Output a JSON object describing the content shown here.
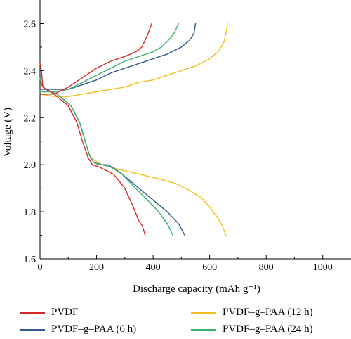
{
  "chart_data": {
    "type": "line",
    "xlabel": "Discharge capacity (mAh g⁻¹)",
    "ylabel": "Voltage (V)",
    "xlim": [
      0,
      1100
    ],
    "ylim": [
      1.6,
      2.7
    ],
    "xticks": [
      0,
      200,
      400,
      600,
      800,
      1000
    ],
    "yticks": [
      1.6,
      1.8,
      2.0,
      2.2,
      2.4,
      2.6
    ],
    "xtick_labels": [
      "0",
      "200",
      "400",
      "600",
      "800",
      "1000"
    ],
    "ytick_labels": [
      "1.6",
      "1.8",
      "2.0",
      "2.2",
      "2.4",
      "2.6"
    ],
    "legend_position": "below",
    "series": [
      {
        "name": "PVDF",
        "color": "#d62728",
        "discharge": [
          [
            0,
            2.43
          ],
          [
            5,
            2.4
          ],
          [
            10,
            2.33
          ],
          [
            50,
            2.3
          ],
          [
            100,
            2.25
          ],
          [
            130,
            2.18
          ],
          [
            150,
            2.1
          ],
          [
            170,
            2.03
          ],
          [
            185,
            2.0
          ],
          [
            210,
            1.99
          ],
          [
            260,
            1.96
          ],
          [
            300,
            1.9
          ],
          [
            330,
            1.82
          ],
          [
            350,
            1.76
          ],
          [
            362,
            1.74
          ],
          [
            372,
            1.7
          ]
        ],
        "charge": [
          [
            0,
            2.3
          ],
          [
            50,
            2.3
          ],
          [
            100,
            2.33
          ],
          [
            150,
            2.37
          ],
          [
            200,
            2.41
          ],
          [
            250,
            2.44
          ],
          [
            300,
            2.46
          ],
          [
            340,
            2.48
          ],
          [
            360,
            2.5
          ],
          [
            380,
            2.55
          ],
          [
            395,
            2.6
          ]
        ]
      },
      {
        "name": "PVDF–g–PAA (6 h)",
        "color": "#2f5c8f",
        "discharge": [
          [
            0,
            2.37
          ],
          [
            5,
            2.34
          ],
          [
            20,
            2.32
          ],
          [
            60,
            2.3
          ],
          [
            110,
            2.25
          ],
          [
            140,
            2.18
          ],
          [
            160,
            2.1
          ],
          [
            175,
            2.04
          ],
          [
            190,
            2.01
          ],
          [
            210,
            2.0
          ],
          [
            240,
            2.0
          ],
          [
            280,
            1.97
          ],
          [
            330,
            1.92
          ],
          [
            400,
            1.85
          ],
          [
            450,
            1.8
          ],
          [
            490,
            1.75
          ],
          [
            512,
            1.7
          ]
        ],
        "charge": [
          [
            0,
            2.32
          ],
          [
            50,
            2.32
          ],
          [
            100,
            2.32
          ],
          [
            150,
            2.34
          ],
          [
            200,
            2.36
          ],
          [
            250,
            2.39
          ],
          [
            300,
            2.41
          ],
          [
            350,
            2.43
          ],
          [
            400,
            2.45
          ],
          [
            450,
            2.47
          ],
          [
            500,
            2.5
          ],
          [
            530,
            2.53
          ],
          [
            545,
            2.56
          ],
          [
            550,
            2.6
          ]
        ]
      },
      {
        "name": "PVDF–g–PAA (12 h)",
        "color": "#f0c020",
        "discharge": [
          [
            0,
            2.37
          ],
          [
            5,
            2.34
          ],
          [
            20,
            2.32
          ],
          [
            60,
            2.3
          ],
          [
            110,
            2.25
          ],
          [
            140,
            2.18
          ],
          [
            160,
            2.1
          ],
          [
            175,
            2.04
          ],
          [
            190,
            2.02
          ],
          [
            220,
            2.0
          ],
          [
            280,
            1.98
          ],
          [
            350,
            1.96
          ],
          [
            420,
            1.94
          ],
          [
            480,
            1.92
          ],
          [
            530,
            1.89
          ],
          [
            570,
            1.86
          ],
          [
            600,
            1.82
          ],
          [
            625,
            1.78
          ],
          [
            645,
            1.74
          ],
          [
            657,
            1.7
          ]
        ],
        "charge": [
          [
            0,
            2.3
          ],
          [
            50,
            2.29
          ],
          [
            100,
            2.29
          ],
          [
            150,
            2.3
          ],
          [
            200,
            2.31
          ],
          [
            250,
            2.32
          ],
          [
            300,
            2.33
          ],
          [
            350,
            2.35
          ],
          [
            400,
            2.36
          ],
          [
            450,
            2.38
          ],
          [
            500,
            2.4
          ],
          [
            550,
            2.42
          ],
          [
            600,
            2.45
          ],
          [
            630,
            2.48
          ],
          [
            650,
            2.52
          ],
          [
            658,
            2.56
          ],
          [
            663,
            2.6
          ]
        ]
      },
      {
        "name": "PVDF–g–PAA (24 h)",
        "color": "#3cb371",
        "discharge": [
          [
            0,
            2.37
          ],
          [
            5,
            2.34
          ],
          [
            20,
            2.32
          ],
          [
            60,
            2.3
          ],
          [
            110,
            2.25
          ],
          [
            140,
            2.18
          ],
          [
            160,
            2.1
          ],
          [
            175,
            2.04
          ],
          [
            190,
            2.01
          ],
          [
            220,
            2.0
          ],
          [
            250,
            1.99
          ],
          [
            290,
            1.96
          ],
          [
            330,
            1.91
          ],
          [
            380,
            1.85
          ],
          [
            420,
            1.8
          ],
          [
            450,
            1.75
          ],
          [
            470,
            1.7
          ]
        ],
        "charge": [
          [
            0,
            2.31
          ],
          [
            50,
            2.31
          ],
          [
            100,
            2.32
          ],
          [
            150,
            2.35
          ],
          [
            200,
            2.38
          ],
          [
            250,
            2.41
          ],
          [
            300,
            2.44
          ],
          [
            350,
            2.46
          ],
          [
            400,
            2.48
          ],
          [
            430,
            2.5
          ],
          [
            455,
            2.53
          ],
          [
            475,
            2.56
          ],
          [
            490,
            2.6
          ]
        ]
      }
    ]
  }
}
